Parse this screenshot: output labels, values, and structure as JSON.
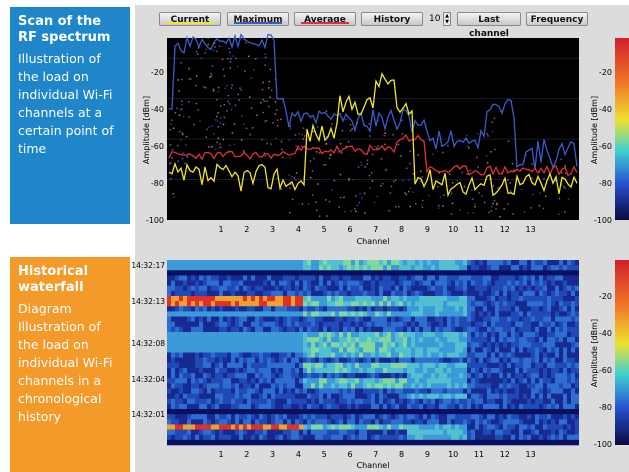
{
  "panels": {
    "top": {
      "title": "Scan of the RF spectrum",
      "text": "Illustration of the load on individual Wi-Fi channels at a certain point of time"
    },
    "bottom": {
      "title": "Historical waterfall",
      "text": "Diagram Illustration of the load on individual Wi-Fi channels in a chronological history"
    }
  },
  "toolbar": {
    "current": "Current",
    "maximum": "Maximum",
    "average": "Average",
    "history": "History",
    "history_count": "10",
    "last_channel": "Last channel",
    "frequency": "Frequency"
  },
  "colors": {
    "current": "#f0e62a",
    "maximum": "#3a5cc8",
    "average": "#e0303a"
  },
  "spectrum": {
    "ylabel": "Amplitude [dBm]",
    "xlabel": "Channel",
    "y_ticks": [
      "-20",
      "-40",
      "-60",
      "-80",
      "-100"
    ],
    "x_ticks": [
      "1",
      "2",
      "3",
      "4",
      "5",
      "6",
      "7",
      "8",
      "9",
      "10",
      "11",
      "12",
      "13"
    ],
    "scale_ticks": [
      "-20",
      "-40",
      "-60",
      "-80",
      "-100"
    ],
    "scale_label": "Amplitude [dBm]"
  },
  "waterfall": {
    "xlabel": "Channel",
    "timestamps": [
      "14:32:17",
      "14:32:13",
      "14:32:08",
      "14:32:04",
      "14:32:01"
    ],
    "x_ticks": [
      "1",
      "2",
      "3",
      "4",
      "5",
      "6",
      "7",
      "8",
      "9",
      "10",
      "11",
      "12",
      "13"
    ],
    "scale_ticks": [
      "-20",
      "-40",
      "-60",
      "-80",
      "-100"
    ],
    "scale_label": "Amplitude [dBm]"
  }
}
